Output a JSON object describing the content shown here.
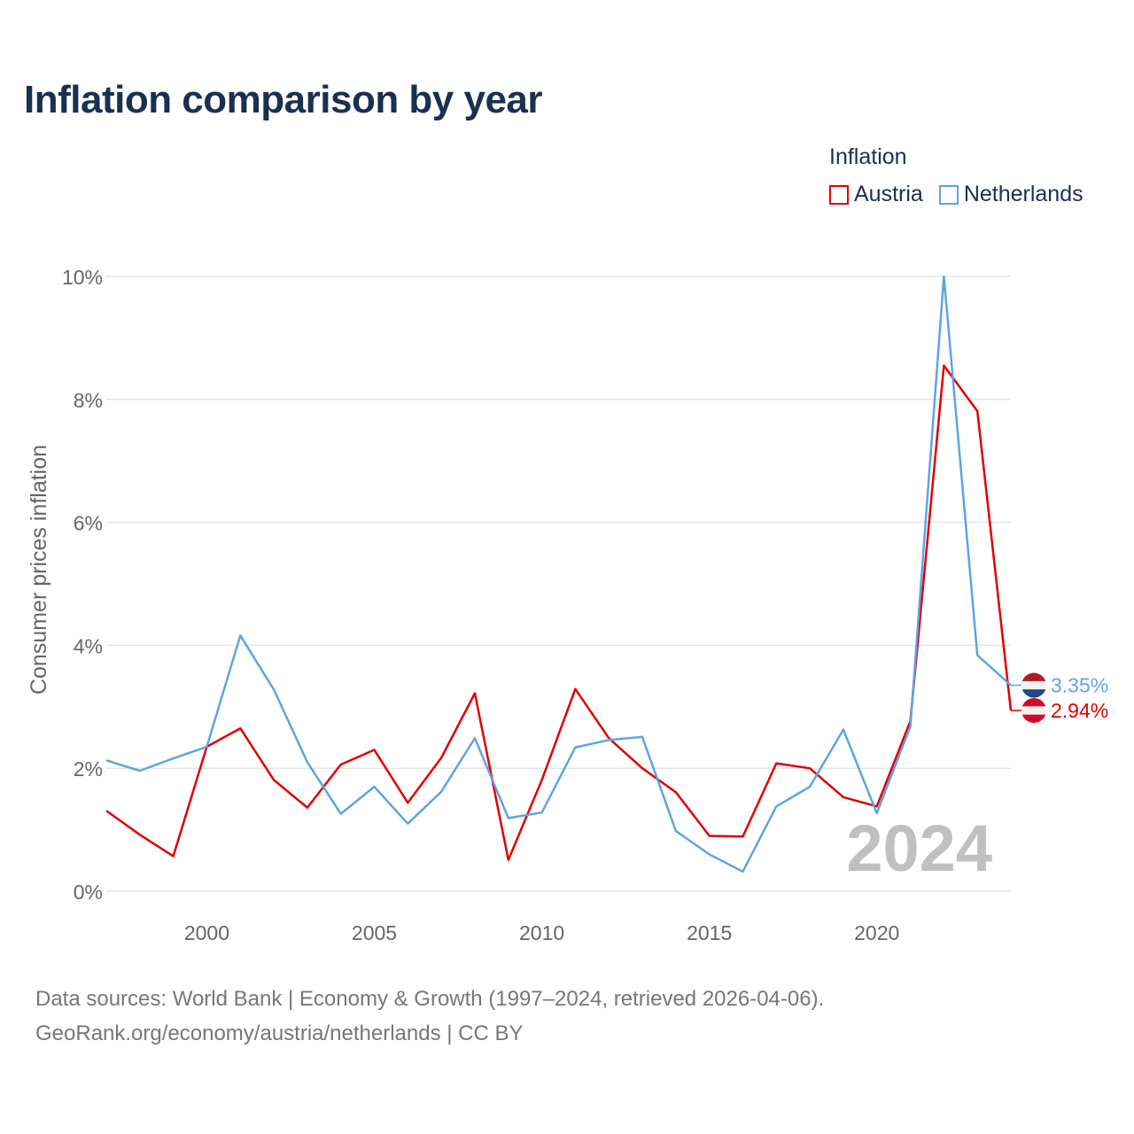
{
  "title": "Inflation comparison by year",
  "legend": {
    "title": "Inflation",
    "items": [
      {
        "name": "Austria",
        "color": "#e00000"
      },
      {
        "name": "Netherlands",
        "color": "#5ea4e6"
      }
    ]
  },
  "footer": {
    "line1": "Data sources: World Bank | Economy & Growth (1997–2024, retrieved 2026-04-06).",
    "line2": "GeoRank.org/economy/austria/netherlands | CC BY"
  },
  "chart_data": {
    "type": "line",
    "title": "Inflation comparison by year",
    "xlabel": "",
    "ylabel": "Consumer prices inflation",
    "xlim": [
      1997,
      2024
    ],
    "ylim": [
      0,
      10
    ],
    "x_ticks": [
      2000,
      2005,
      2010,
      2015,
      2020
    ],
    "y_ticks": [
      0,
      2,
      4,
      6,
      8,
      10
    ],
    "y_tick_labels": [
      "0%",
      "2%",
      "4%",
      "6%",
      "8%",
      "10%"
    ],
    "grid": true,
    "legend_position": "top-right",
    "year_watermark": "2024",
    "x": [
      1997,
      1998,
      1999,
      2000,
      2001,
      2002,
      2003,
      2004,
      2005,
      2006,
      2007,
      2008,
      2009,
      2010,
      2011,
      2012,
      2013,
      2014,
      2015,
      2016,
      2017,
      2018,
      2019,
      2020,
      2021,
      2022,
      2023,
      2024
    ],
    "series": [
      {
        "name": "Austria",
        "color": "#e00000",
        "end_label": "2.94%",
        "values": [
          1.31,
          0.92,
          0.57,
          2.35,
          2.65,
          1.81,
          1.36,
          2.06,
          2.3,
          1.44,
          2.17,
          3.22,
          0.51,
          1.81,
          3.29,
          2.49,
          2.0,
          1.61,
          0.9,
          0.89,
          2.08,
          2.0,
          1.53,
          1.38,
          2.77,
          8.55,
          7.81,
          2.94
        ]
      },
      {
        "name": "Netherlands",
        "color": "#5ea4e6",
        "end_label": "3.35%",
        "values": [
          2.13,
          1.96,
          2.16,
          2.35,
          4.16,
          3.28,
          2.1,
          1.26,
          1.7,
          1.1,
          1.62,
          2.49,
          1.19,
          1.28,
          2.34,
          2.46,
          2.51,
          0.98,
          0.6,
          0.32,
          1.38,
          1.7,
          2.63,
          1.27,
          2.68,
          10.0,
          3.84,
          3.35
        ]
      }
    ]
  }
}
